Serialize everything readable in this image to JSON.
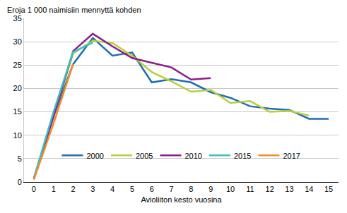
{
  "chart_data": {
    "type": "line",
    "y_label": "Eroja 1 000 naimisiin mennyttä kohden",
    "x_label": "Avioliiton kesto vuosina",
    "x": [
      0,
      1,
      2,
      3,
      4,
      5,
      6,
      7,
      8,
      9,
      10,
      11,
      12,
      13,
      14,
      15
    ],
    "series": [
      {
        "name": "2000",
        "color": "#1f6db3",
        "values": [
          0.7,
          14,
          25.2,
          30.8,
          27,
          27.7,
          21.3,
          22,
          21.3,
          19.2,
          18,
          16.2,
          15.7,
          15.4,
          13.5,
          13.5
        ]
      },
      {
        "name": "2005",
        "color": "#b6cf3a",
        "values": [
          0.7,
          14,
          27.5,
          30.2,
          29.7,
          27,
          23.5,
          21.5,
          19.3,
          19.7,
          16.9,
          17.3,
          15,
          15.2,
          14.2,
          null
        ]
      },
      {
        "name": "2010",
        "color": "#8c1d8a",
        "values": [
          0.7,
          14,
          28,
          31.7,
          29,
          26.5,
          25.5,
          24.5,
          21.9,
          22.2,
          null,
          null,
          null,
          null,
          null,
          null
        ]
      },
      {
        "name": "2015",
        "color": "#3ebfc3",
        "values": [
          0.8,
          15,
          27.8,
          29.8,
          null,
          null,
          null,
          null,
          null,
          null,
          null,
          null,
          null,
          null,
          null,
          null
        ]
      },
      {
        "name": "2017",
        "color": "#f28c28",
        "values": [
          0.5,
          12.5,
          25.3,
          null,
          null,
          null,
          null,
          null,
          null,
          null,
          null,
          null,
          null,
          null,
          null,
          null
        ]
      }
    ],
    "xlim": [
      -0.5,
      15.5
    ],
    "xticks": [
      0,
      1,
      2,
      3,
      4,
      5,
      6,
      7,
      8,
      9,
      10,
      11,
      12,
      13,
      14,
      15
    ],
    "ylim": [
      0,
      35
    ],
    "yticks": [
      0,
      5,
      10,
      15,
      20,
      25,
      30,
      35
    ],
    "grid": true,
    "legend": "bottom"
  }
}
